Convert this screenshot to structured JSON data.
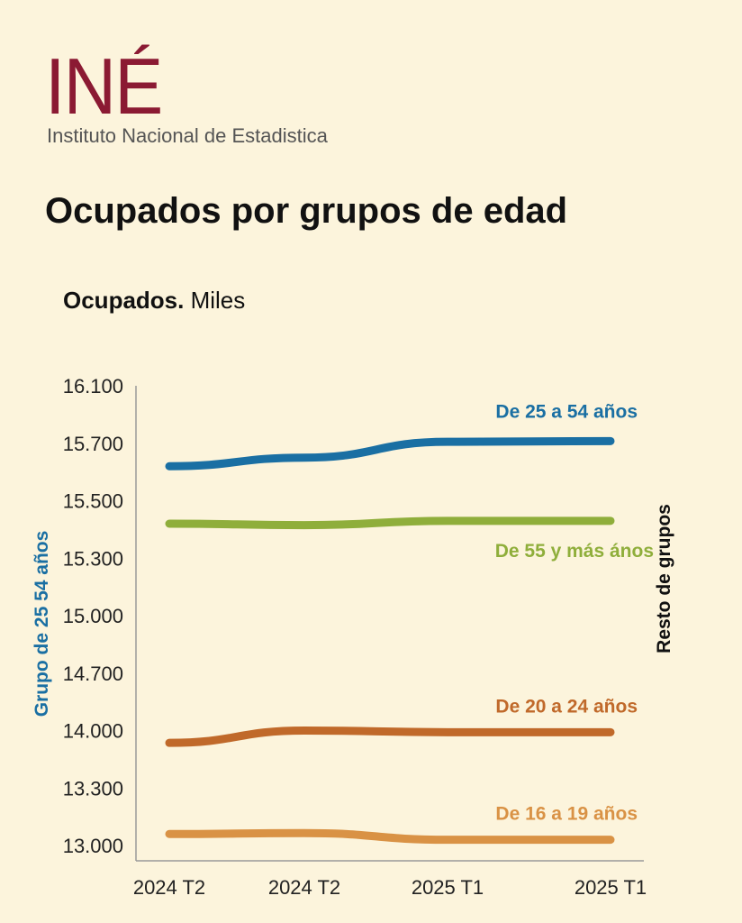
{
  "header": {
    "logo_text": "INÉ",
    "org_name": "Instituto Nacional de Estadistica",
    "page_title": "Ocupados por grupos de edad"
  },
  "chart_data": {
    "type": "line",
    "title": "Ocupados.",
    "subtitle": "Miles",
    "categories": [
      "2024 T2",
      "2024 T2",
      "2025 T1",
      "2025 T1"
    ],
    "y_ticks": [
      "16.100",
      "15.700",
      "15.500",
      "15.300",
      "15.000",
      "14.700",
      "14.000",
      "13.300",
      "13.000"
    ],
    "ylabel_left": "Grupo de 25 54 años",
    "ylabel_right": "Resto de grupos",
    "grid": false,
    "series": [
      {
        "name": "De 25 a 54 años",
        "color": "#1a6fa3",
        "values": [
          15620,
          15650,
          15710,
          15715
        ]
      },
      {
        "name": "De 55 y más ános",
        "color": "#8fae3b",
        "values": [
          15420,
          15415,
          15430,
          15430
        ]
      },
      {
        "name": "De 20 a 24 años",
        "color": "#c0692a",
        "values": [
          13850,
          14000,
          13980,
          13980
        ]
      },
      {
        "name": "De 16 a 19 años",
        "color": "#d99245",
        "values": [
          13060,
          13065,
          13030,
          13030
        ]
      }
    ]
  }
}
